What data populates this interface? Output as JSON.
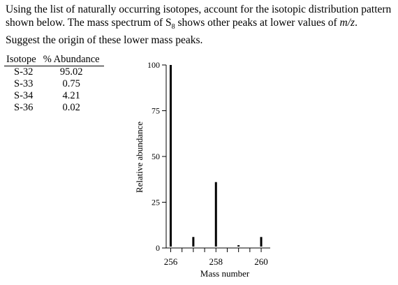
{
  "question": {
    "text_before_sub": "Using the list of naturally occurring isotopes, account for the isotopic distribution pattern shown below. The mass spectrum of S",
    "sub": "8",
    "text_after_sub": " shows other peaks at lower values of ",
    "italic": "m/z",
    "text_end": ". Suggest the origin of these lower mass peaks."
  },
  "isotope_table": {
    "headers": [
      "Isotope",
      "% Abundance"
    ],
    "rows": [
      [
        "S-32",
        "95.02"
      ],
      [
        "S-33",
        "0.75"
      ],
      [
        "S-34",
        "4.21"
      ],
      [
        "S-36",
        "0.02"
      ]
    ]
  },
  "chart_data": {
    "type": "bar",
    "xlabel": "Mass number",
    "ylabel": "Relative abundance",
    "ylim": [
      0,
      100
    ],
    "xlim": [
      255.8,
      260.4
    ],
    "yticks": [
      0,
      25,
      50,
      75,
      100
    ],
    "xticks": [
      256,
      256.5,
      257,
      257.5,
      258,
      258.5,
      259,
      259.5,
      260
    ],
    "xtick_labels": [
      "256",
      "",
      "",
      "",
      "258",
      "",
      "",
      "",
      "260"
    ],
    "x": [
      256,
      257,
      258,
      259,
      260
    ],
    "values": [
      100,
      6,
      36,
      1.5,
      6
    ]
  }
}
